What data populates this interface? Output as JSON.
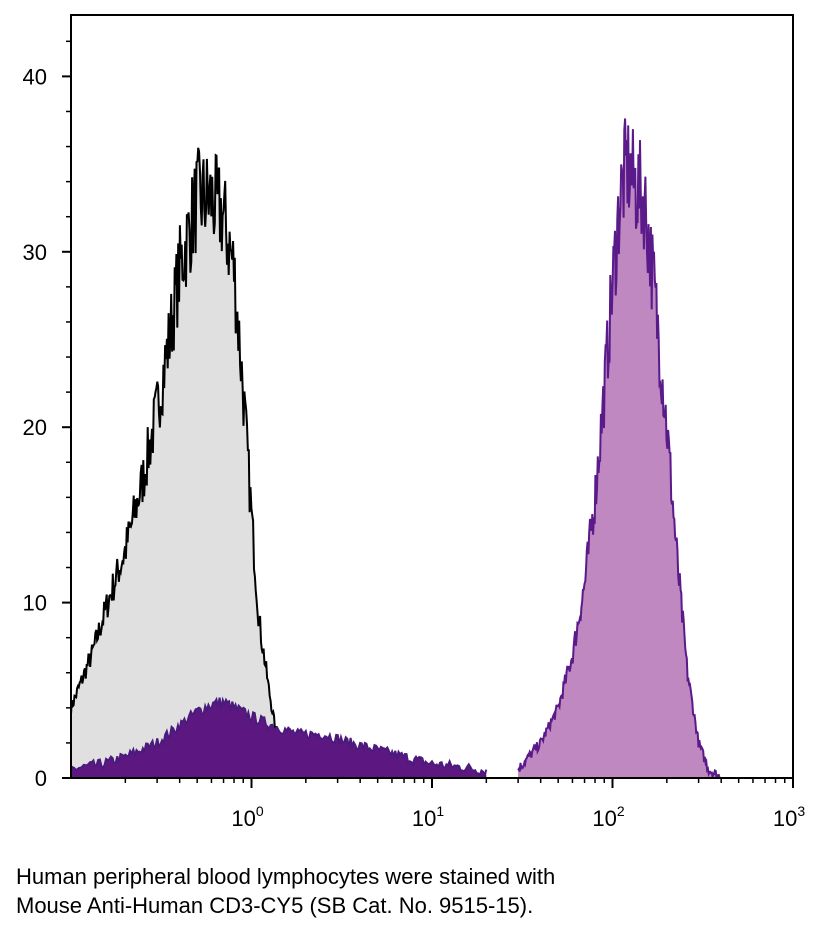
{
  "chart_data": {
    "type": "area",
    "x_scale": "log",
    "xlim": [
      0.1,
      1000
    ],
    "ylim": [
      0,
      43.5
    ],
    "x_ticks": [
      {
        "base": "10",
        "exp": "0",
        "value": 1
      },
      {
        "base": "10",
        "exp": "1",
        "value": 10
      },
      {
        "base": "10",
        "exp": "2",
        "value": 100
      },
      {
        "base": "10",
        "exp": "3",
        "value": 1000
      }
    ],
    "y_ticks": [
      0,
      10,
      20,
      30,
      40
    ],
    "grid": false,
    "series": [
      {
        "color": "#000000",
        "fill": "#e0e0e0",
        "x": [
          0.1,
          0.13,
          0.16,
          0.2,
          0.25,
          0.3,
          0.35,
          0.4,
          0.5,
          0.6,
          0.7,
          0.8,
          0.9,
          1.0,
          1.1,
          1.25,
          1.4,
          1.6,
          1.8
        ],
        "y": [
          4,
          7,
          10,
          13,
          17,
          21,
          25,
          29,
          33,
          33,
          32,
          29,
          22,
          15,
          9,
          5,
          2,
          1,
          0
        ]
      },
      {
        "color": "#4b1a7c",
        "fill": "#5c1880",
        "x": [
          0.1,
          0.15,
          0.2,
          0.3,
          0.4,
          0.5,
          0.6,
          0.7,
          0.8,
          1.0,
          1.3,
          1.8,
          2.5,
          3.5,
          5,
          7,
          10,
          15,
          20
        ],
        "y": [
          0.5,
          0.8,
          1.2,
          2,
          3,
          3.8,
          4.2,
          4.3,
          4,
          3.5,
          3,
          2.5,
          2.5,
          2,
          1.6,
          1.2,
          0.8,
          0.6,
          0.4
        ]
      },
      {
        "color": "#5a1a8a",
        "fill": "#c088c0",
        "x": [
          30,
          40,
          50,
          60,
          70,
          80,
          90,
          100,
          110,
          120,
          130,
          150,
          170,
          200,
          230,
          260,
          300,
          340,
          400
        ],
        "y": [
          0.5,
          2,
          4,
          7,
          11,
          16,
          22,
          28,
          33,
          35,
          34,
          33,
          28,
          20,
          12,
          6,
          2,
          0.5,
          0
        ]
      }
    ]
  },
  "caption": {
    "line1": "Human peripheral blood lymphocytes were stained with",
    "line2": "Mouse Anti-Human CD3-CY5 (SB Cat. No. 9515-15)."
  }
}
